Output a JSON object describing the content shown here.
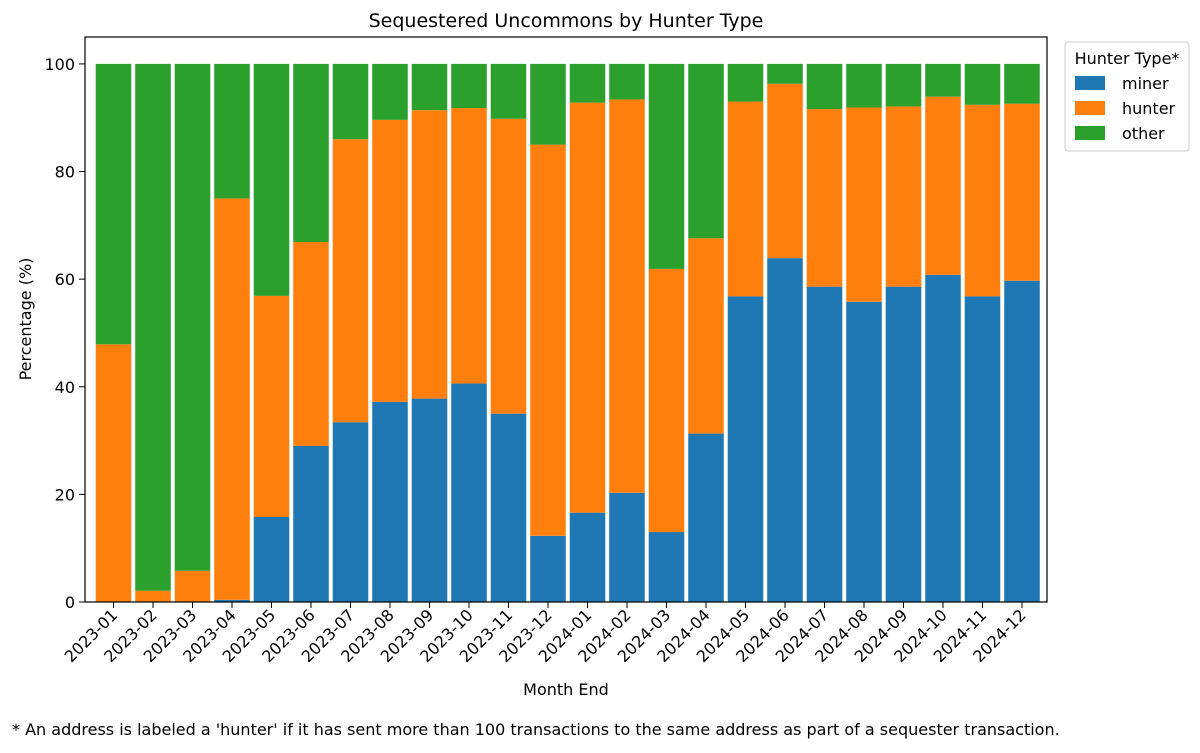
{
  "chart_data": {
    "type": "bar",
    "stacked": true,
    "title": "Sequestered Uncommons by Hunter Type",
    "xlabel": "Month End",
    "ylabel": "Percentage (%)",
    "ylim": [
      0,
      105
    ],
    "yticks": [
      0,
      20,
      40,
      60,
      80,
      100
    ],
    "grid": false,
    "legend": {
      "title": "Hunter Type*",
      "placement": "outside-top-right"
    },
    "categories": [
      "2023-01",
      "2023-02",
      "2023-03",
      "2023-04",
      "2023-05",
      "2023-06",
      "2023-07",
      "2023-08",
      "2023-09",
      "2023-10",
      "2023-11",
      "2023-12",
      "2024-01",
      "2024-02",
      "2024-03",
      "2024-04",
      "2024-05",
      "2024-06",
      "2024-07",
      "2024-08",
      "2024-09",
      "2024-10",
      "2024-11",
      "2024-12"
    ],
    "series": [
      {
        "name": "miner",
        "color": "#1f77b4",
        "values": [
          0,
          0,
          0,
          0.4,
          15.8,
          29.0,
          33.4,
          37.2,
          37.8,
          40.6,
          35.0,
          12.3,
          16.6,
          20.3,
          13.0,
          31.3,
          56.8,
          63.9,
          58.6,
          55.8,
          58.6,
          60.8,
          56.8,
          59.7
        ]
      },
      {
        "name": "hunter",
        "color": "#ff7f0e",
        "values": [
          47.9,
          2.1,
          5.8,
          74.6,
          41.1,
          37.9,
          52.6,
          52.4,
          53.6,
          51.2,
          54.8,
          72.7,
          76.2,
          73.1,
          48.9,
          36.3,
          36.2,
          32.4,
          33.0,
          36.1,
          33.5,
          33.1,
          35.6,
          32.9
        ]
      },
      {
        "name": "other",
        "color": "#2ca02c",
        "values": [
          52.1,
          97.9,
          94.2,
          25.0,
          43.1,
          33.1,
          14.0,
          10.4,
          8.6,
          8.2,
          10.2,
          15.0,
          7.2,
          6.6,
          38.1,
          32.4,
          7.0,
          3.7,
          8.4,
          8.1,
          7.9,
          6.1,
          7.6,
          7.4
        ]
      }
    ]
  },
  "footnote": "* An address is labeled a 'hunter' if it has sent more than 100 transactions to the same address as part of a sequester transaction."
}
